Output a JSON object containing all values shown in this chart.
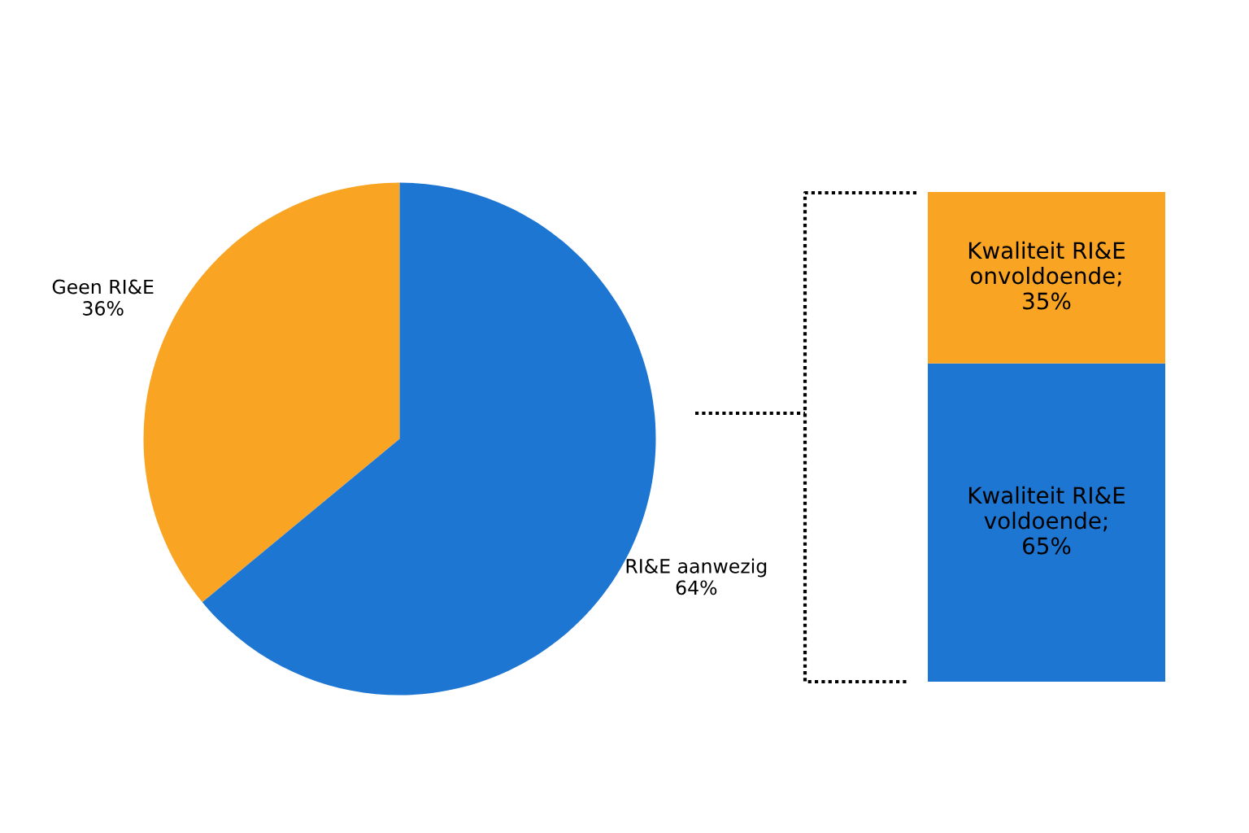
{
  "chart_data": [
    {
      "type": "pie",
      "categories": [
        "Geen RI&E",
        "RI&E aanwezig"
      ],
      "values": [
        36,
        64
      ],
      "value_labels": [
        "36%",
        "64%"
      ],
      "colors": [
        "#f9a423",
        "#1e76d3"
      ]
    },
    {
      "type": "bar",
      "stacked": true,
      "categories": [
        null
      ],
      "tick_labels": false,
      "series": [
        {
          "color": "#1e76d3",
          "values": [
            65
          ],
          "value_labels": [
            "Kwaliteit RI&E\nvoldoende;\n65%"
          ]
        },
        {
          "color": "#f9a423",
          "values": [
            35
          ],
          "value_labels": [
            "Kwaliteit RI&E\nonvoldoende;\n35%"
          ]
        }
      ]
    }
  ]
}
